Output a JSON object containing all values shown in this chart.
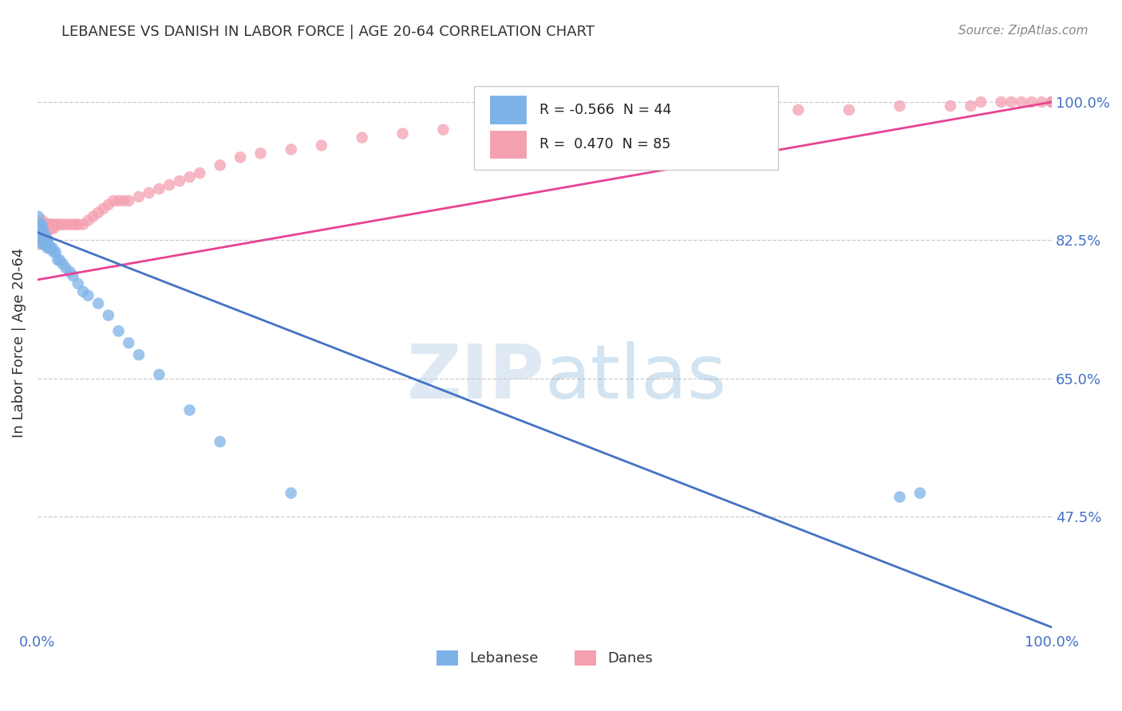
{
  "title": "LEBANESE VS DANISH IN LABOR FORCE | AGE 20-64 CORRELATION CHART",
  "source_text": "Source: ZipAtlas.com",
  "ylabel": "In Labor Force | Age 20-64",
  "xlim": [
    0.0,
    1.0
  ],
  "ylim": [
    0.33,
    1.06
  ],
  "yticks": [
    0.475,
    0.65,
    0.825,
    1.0
  ],
  "ytick_labels": [
    "47.5%",
    "65.0%",
    "82.5%",
    "100.0%"
  ],
  "xtick_labels": [
    "0.0%",
    "100.0%"
  ],
  "xticks": [
    0.0,
    1.0
  ],
  "legend_r_lebanese": "-0.566",
  "legend_n_lebanese": "44",
  "legend_r_danes": "0.470",
  "legend_n_danes": "85",
  "lebanese_color": "#7EB3E8",
  "danes_color": "#F4A0B0",
  "lebanese_line_color": "#4472C4",
  "danes_line_color": "#E84393",
  "background_color": "#FFFFFF",
  "leb_line_x0": 0.0,
  "leb_line_y0": 0.835,
  "leb_line_x1": 1.0,
  "leb_line_y1": 0.335,
  "danes_line_x0": 0.0,
  "danes_line_y0": 0.775,
  "danes_line_x1": 1.0,
  "danes_line_y1": 1.0,
  "lebanese_x": [
    0.0,
    0.001,
    0.002,
    0.003,
    0.003,
    0.004,
    0.004,
    0.005,
    0.005,
    0.006,
    0.006,
    0.007,
    0.007,
    0.008,
    0.008,
    0.009,
    0.01,
    0.01,
    0.011,
    0.012,
    0.013,
    0.015,
    0.016,
    0.018,
    0.02,
    0.022,
    0.025,
    0.028,
    0.032,
    0.035,
    0.04,
    0.045,
    0.05,
    0.06,
    0.07,
    0.08,
    0.09,
    0.1,
    0.12,
    0.15,
    0.18,
    0.25,
    0.85,
    0.87
  ],
  "lebanese_y": [
    0.84,
    0.855,
    0.84,
    0.845,
    0.835,
    0.845,
    0.83,
    0.84,
    0.82,
    0.835,
    0.825,
    0.83,
    0.82,
    0.83,
    0.82,
    0.825,
    0.825,
    0.815,
    0.82,
    0.815,
    0.815,
    0.815,
    0.81,
    0.81,
    0.8,
    0.8,
    0.795,
    0.79,
    0.785,
    0.78,
    0.77,
    0.76,
    0.755,
    0.745,
    0.73,
    0.71,
    0.695,
    0.68,
    0.655,
    0.61,
    0.57,
    0.505,
    0.5,
    0.505
  ],
  "danes_x": [
    0.0,
    0.0,
    0.001,
    0.001,
    0.001,
    0.002,
    0.002,
    0.002,
    0.003,
    0.003,
    0.003,
    0.004,
    0.004,
    0.005,
    0.005,
    0.005,
    0.006,
    0.006,
    0.007,
    0.007,
    0.008,
    0.009,
    0.009,
    0.01,
    0.011,
    0.012,
    0.013,
    0.014,
    0.015,
    0.016,
    0.018,
    0.02,
    0.022,
    0.025,
    0.028,
    0.032,
    0.035,
    0.038,
    0.04,
    0.045,
    0.05,
    0.055,
    0.06,
    0.065,
    0.07,
    0.075,
    0.08,
    0.085,
    0.09,
    0.1,
    0.11,
    0.12,
    0.13,
    0.14,
    0.15,
    0.16,
    0.18,
    0.2,
    0.22,
    0.25,
    0.28,
    0.32,
    0.36,
    0.4,
    0.45,
    0.5,
    0.55,
    0.6,
    0.65,
    0.7,
    0.75,
    0.8,
    0.85,
    0.9,
    0.92,
    0.93,
    0.95,
    0.96,
    0.97,
    0.98,
    0.99,
    1.0,
    1.0,
    1.0,
    1.0
  ],
  "danes_y": [
    0.845,
    0.83,
    0.84,
    0.835,
    0.82,
    0.845,
    0.84,
    0.825,
    0.845,
    0.84,
    0.83,
    0.845,
    0.83,
    0.85,
    0.84,
    0.83,
    0.845,
    0.83,
    0.845,
    0.83,
    0.845,
    0.845,
    0.83,
    0.845,
    0.845,
    0.845,
    0.84,
    0.845,
    0.845,
    0.84,
    0.845,
    0.845,
    0.845,
    0.845,
    0.845,
    0.845,
    0.845,
    0.845,
    0.845,
    0.845,
    0.85,
    0.855,
    0.86,
    0.865,
    0.87,
    0.875,
    0.875,
    0.875,
    0.875,
    0.88,
    0.885,
    0.89,
    0.895,
    0.9,
    0.905,
    0.91,
    0.92,
    0.93,
    0.935,
    0.94,
    0.945,
    0.955,
    0.96,
    0.965,
    0.97,
    0.975,
    0.98,
    0.98,
    0.985,
    0.985,
    0.99,
    0.99,
    0.995,
    0.995,
    0.995,
    1.0,
    1.0,
    1.0,
    1.0,
    1.0,
    1.0,
    1.0,
    1.0,
    1.0,
    1.0
  ]
}
